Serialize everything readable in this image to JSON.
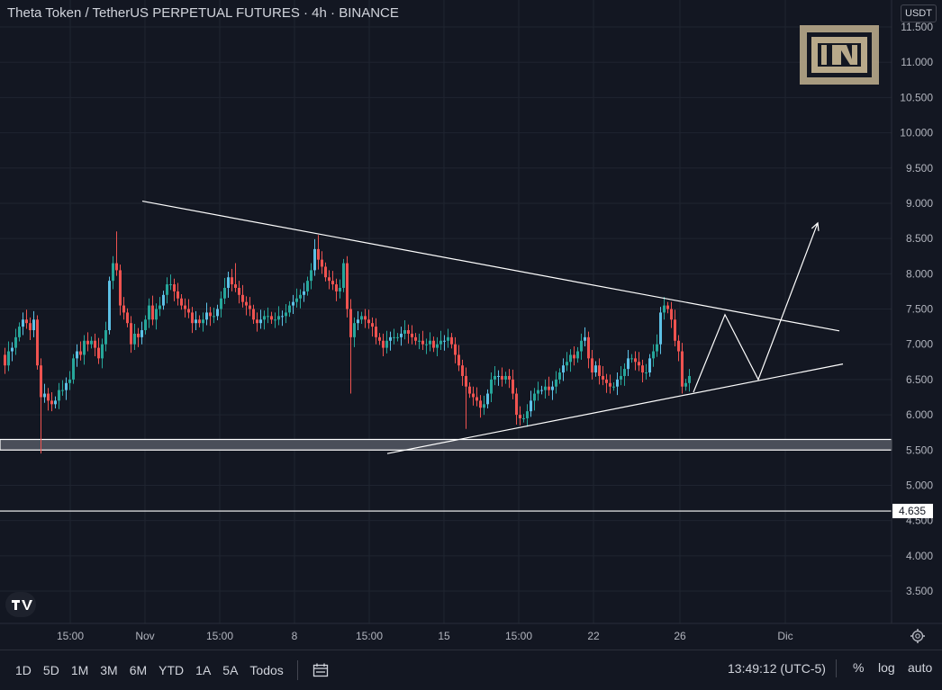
{
  "header": {
    "title": "Theta Token / TetherUS PERPETUAL FUTURES · 4h · BINANCE",
    "currency": "USDT"
  },
  "colors": {
    "background": "#131722",
    "up": "#26a69a",
    "up_light": "#5dc1e6",
    "down": "#ef5350",
    "line": "#ffffff",
    "grid": "#1f2430"
  },
  "icons": [
    "tradingview-logo-icon",
    "beincrypto-logo-icon",
    "calendar-icon",
    "gear-icon"
  ],
  "chart_data": {
    "type": "candlestick",
    "y_axis": {
      "ticks": [
        "11.500",
        "11.000",
        "10.500",
        "10.000",
        "9.500",
        "9.000",
        "8.500",
        "8.000",
        "7.500",
        "7.000",
        "6.500",
        "6.000",
        "5.500",
        "5.000",
        "4.500",
        "4.000",
        "3.500"
      ],
      "min": 3.1,
      "max": 11.55
    },
    "x_axis": {
      "ticks": [
        "15:00",
        "Nov",
        "15:00",
        "8",
        "15:00",
        "15",
        "15:00",
        "22",
        "26",
        "Dic"
      ]
    },
    "price_marker": "4.635",
    "resistance_zone": [
      5.5,
      5.65
    ],
    "support_line": 4.635,
    "series_path": [
      [
        0,
        6.85
      ],
      [
        4,
        6.7
      ],
      [
        8,
        6.9
      ],
      [
        12,
        6.95
      ],
      [
        16,
        7.1
      ],
      [
        20,
        7.25
      ],
      [
        24,
        7.35
      ],
      [
        28,
        7.3
      ],
      [
        32,
        7.2
      ],
      [
        36,
        7.35
      ],
      [
        40,
        6.7
      ],
      [
        44,
        6.25
      ],
      [
        48,
        6.3
      ],
      [
        52,
        6.2
      ],
      [
        56,
        6.15
      ],
      [
        60,
        6.2
      ],
      [
        64,
        6.35
      ],
      [
        68,
        6.35
      ],
      [
        72,
        6.45
      ],
      [
        76,
        6.5
      ],
      [
        80,
        6.8
      ],
      [
        84,
        6.9
      ],
      [
        88,
        6.85
      ],
      [
        92,
        7.05
      ],
      [
        96,
        7.0
      ],
      [
        100,
        7.05
      ],
      [
        104,
        6.95
      ],
      [
        108,
        6.8
      ],
      [
        112,
        7.0
      ],
      [
        116,
        7.2
      ],
      [
        120,
        7.9
      ],
      [
        124,
        8.15
      ],
      [
        128,
        8.05
      ],
      [
        132,
        7.55
      ],
      [
        136,
        7.45
      ],
      [
        140,
        7.3
      ],
      [
        144,
        7.0
      ],
      [
        148,
        7.15
      ],
      [
        152,
        7.1
      ],
      [
        156,
        7.2
      ],
      [
        160,
        7.35
      ],
      [
        164,
        7.55
      ],
      [
        168,
        7.35
      ],
      [
        172,
        7.5
      ],
      [
        176,
        7.55
      ],
      [
        180,
        7.7
      ],
      [
        184,
        7.85
      ],
      [
        188,
        7.85
      ],
      [
        192,
        7.75
      ],
      [
        196,
        7.65
      ],
      [
        200,
        7.55
      ],
      [
        204,
        7.5
      ],
      [
        208,
        7.45
      ],
      [
        212,
        7.3
      ],
      [
        216,
        7.35
      ],
      [
        220,
        7.3
      ],
      [
        224,
        7.35
      ],
      [
        228,
        7.45
      ],
      [
        232,
        7.4
      ],
      [
        236,
        7.4
      ],
      [
        240,
        7.5
      ],
      [
        244,
        7.65
      ],
      [
        248,
        7.8
      ],
      [
        252,
        7.95
      ],
      [
        256,
        7.85
      ],
      [
        260,
        7.8
      ],
      [
        264,
        7.7
      ],
      [
        268,
        7.6
      ],
      [
        272,
        7.55
      ],
      [
        276,
        7.5
      ],
      [
        280,
        7.35
      ],
      [
        284,
        7.3
      ],
      [
        288,
        7.35
      ],
      [
        292,
        7.4
      ],
      [
        296,
        7.4
      ],
      [
        300,
        7.35
      ],
      [
        304,
        7.35
      ],
      [
        308,
        7.4
      ],
      [
        312,
        7.4
      ],
      [
        316,
        7.45
      ],
      [
        320,
        7.55
      ],
      [
        324,
        7.6
      ],
      [
        328,
        7.65
      ],
      [
        332,
        7.7
      ],
      [
        336,
        7.75
      ],
      [
        340,
        7.9
      ],
      [
        344,
        8.05
      ],
      [
        348,
        8.35
      ],
      [
        352,
        8.2
      ],
      [
        356,
        8.1
      ],
      [
        360,
        7.95
      ],
      [
        364,
        7.9
      ],
      [
        368,
        7.85
      ],
      [
        372,
        7.75
      ],
      [
        376,
        7.8
      ],
      [
        380,
        8.15
      ],
      [
        384,
        7.5
      ],
      [
        388,
        7.1
      ],
      [
        392,
        7.3
      ],
      [
        396,
        7.35
      ],
      [
        400,
        7.4
      ],
      [
        404,
        7.35
      ],
      [
        408,
        7.3
      ],
      [
        412,
        7.25
      ],
      [
        416,
        7.1
      ],
      [
        420,
        7.05
      ],
      [
        424,
        6.95
      ],
      [
        428,
        7.05
      ],
      [
        432,
        7.1
      ],
      [
        436,
        7.1
      ],
      [
        440,
        7.1
      ],
      [
        444,
        7.15
      ],
      [
        448,
        7.2
      ],
      [
        452,
        7.15
      ],
      [
        456,
        7.1
      ],
      [
        460,
        7.05
      ],
      [
        464,
        7.05
      ],
      [
        468,
        7.0
      ],
      [
        472,
        7.0
      ],
      [
        476,
        7.05
      ],
      [
        480,
        6.95
      ],
      [
        484,
        7.0
      ],
      [
        488,
        7.05
      ],
      [
        492,
        7.05
      ],
      [
        496,
        7.1
      ],
      [
        500,
        7.0
      ],
      [
        504,
        6.85
      ],
      [
        508,
        6.7
      ],
      [
        512,
        6.55
      ],
      [
        516,
        6.4
      ],
      [
        520,
        6.3
      ],
      [
        524,
        6.25
      ],
      [
        528,
        6.2
      ],
      [
        532,
        6.1
      ],
      [
        536,
        6.15
      ],
      [
        540,
        6.3
      ],
      [
        544,
        6.5
      ],
      [
        548,
        6.55
      ],
      [
        552,
        6.55
      ],
      [
        556,
        6.5
      ],
      [
        560,
        6.55
      ],
      [
        564,
        6.5
      ],
      [
        568,
        6.3
      ],
      [
        572,
        6.0
      ],
      [
        576,
        5.95
      ],
      [
        580,
        5.95
      ],
      [
        584,
        6.05
      ],
      [
        588,
        6.2
      ],
      [
        592,
        6.3
      ],
      [
        596,
        6.35
      ],
      [
        600,
        6.35
      ],
      [
        604,
        6.4
      ],
      [
        608,
        6.35
      ],
      [
        612,
        6.4
      ],
      [
        616,
        6.5
      ],
      [
        620,
        6.6
      ],
      [
        624,
        6.7
      ],
      [
        628,
        6.75
      ],
      [
        632,
        6.85
      ],
      [
        636,
        6.8
      ],
      [
        640,
        6.9
      ],
      [
        644,
        7.05
      ],
      [
        648,
        7.1
      ],
      [
        652,
        6.8
      ],
      [
        656,
        6.6
      ],
      [
        660,
        6.7
      ],
      [
        664,
        6.55
      ],
      [
        668,
        6.5
      ],
      [
        672,
        6.45
      ],
      [
        676,
        6.4
      ],
      [
        680,
        6.4
      ],
      [
        684,
        6.5
      ],
      [
        688,
        6.55
      ],
      [
        692,
        6.65
      ],
      [
        696,
        6.8
      ],
      [
        700,
        6.8
      ],
      [
        704,
        6.75
      ],
      [
        708,
        6.7
      ],
      [
        712,
        6.6
      ],
      [
        716,
        6.6
      ],
      [
        720,
        6.8
      ],
      [
        724,
        6.9
      ],
      [
        728,
        7.0
      ],
      [
        732,
        7.45
      ],
      [
        736,
        7.55
      ],
      [
        740,
        7.5
      ],
      [
        744,
        7.35
      ],
      [
        748,
        7.05
      ],
      [
        752,
        6.9
      ],
      [
        756,
        6.4
      ],
      [
        760,
        6.45
      ],
      [
        764,
        6.55
      ]
    ],
    "wick_extremes": [
      [
        44,
        5.45
      ],
      [
        128,
        8.6
      ],
      [
        260,
        8.15
      ],
      [
        352,
        8.55
      ],
      [
        388,
        6.3
      ],
      [
        516,
        5.8
      ],
      [
        576,
        5.85
      ],
      [
        740,
        7.6
      ],
      [
        756,
        6.3
      ]
    ],
    "trendlines": [
      {
        "name": "upper-resistance",
        "from": [
          158,
          9.03
        ],
        "to": [
          932,
          7.19
        ]
      },
      {
        "name": "lower-support",
        "from": [
          430,
          5.45
        ],
        "to": [
          936,
          6.72
        ]
      }
    ],
    "projection_path": [
      [
        770,
        6.32
      ],
      [
        805,
        7.42
      ],
      [
        842,
        6.5
      ],
      [
        908,
        8.72
      ]
    ]
  },
  "toolbar": {
    "timeframes": [
      "1D",
      "5D",
      "1M",
      "3M",
      "6M",
      "YTD",
      "1A",
      "5A",
      "Todos"
    ],
    "clock": "13:49:12 (UTC-5)",
    "percent": "%",
    "log": "log",
    "auto": "auto"
  }
}
